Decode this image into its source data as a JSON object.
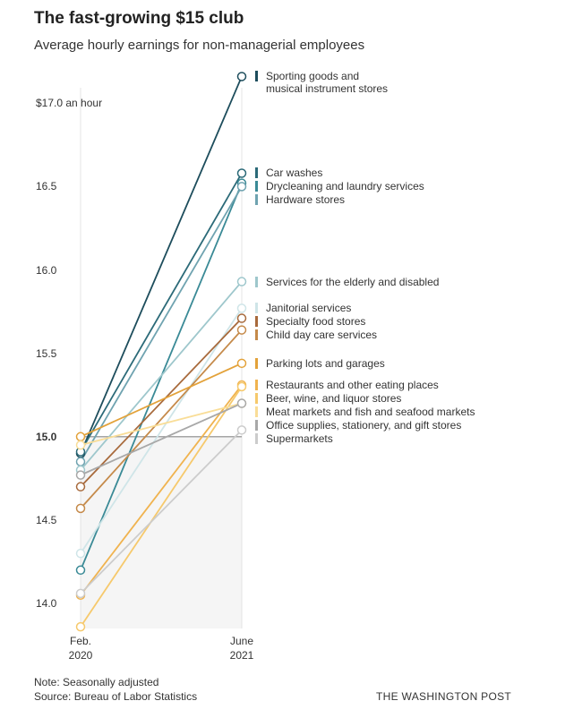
{
  "chart_data": {
    "type": "slope",
    "title": "The fast-growing $15 club",
    "subtitle": "Average hourly earnings for non-managerial employees",
    "categories": [
      "Feb.\n2020",
      "June\n2021"
    ],
    "ylim": [
      13.85,
      17.2
    ],
    "yticks": [
      {
        "value": 14,
        "label": "14.0"
      },
      14.5,
      {
        "value": 15,
        "label": "15.0",
        "bold": true
      },
      15.5,
      {
        "value": 16,
        "label": "16.0"
      },
      16.5,
      {
        "value": 17,
        "label": "$17.0 an hour"
      }
    ],
    "series": [
      {
        "name": "Sporting goods and\nmusical instrument stores",
        "color": "#1d4d5c",
        "values": [
          14.9,
          17.16
        ]
      },
      {
        "name": "Car washes",
        "color": "#2b6a78",
        "values": [
          14.91,
          16.58
        ]
      },
      {
        "name": "Drycleaning and laundry services",
        "color": "#3a8a96",
        "values": [
          14.2,
          16.52
        ]
      },
      {
        "name": "Hardware stores",
        "color": "#6fa3b0",
        "values": [
          14.85,
          16.5
        ]
      },
      {
        "name": "Services for the elderly and disabled",
        "color": "#9ec7cc",
        "values": [
          14.8,
          15.93
        ]
      },
      {
        "name": "Janitorial services",
        "color": "#cfe5e8",
        "values": [
          14.3,
          15.77
        ]
      },
      {
        "name": "Specialty food stores",
        "color": "#a86a3c",
        "values": [
          14.7,
          15.71
        ]
      },
      {
        "name": "Child day care services",
        "color": "#c58a4a",
        "values": [
          14.57,
          15.64
        ]
      },
      {
        "name": "Parking lots and garages",
        "color": "#e3a23a",
        "values": [
          15.0,
          15.44
        ]
      },
      {
        "name": "Restaurants and other eating places",
        "color": "#f0b34f",
        "values": [
          14.05,
          15.31
        ]
      },
      {
        "name": "Beer, wine, and liquor stores",
        "color": "#f6c96c",
        "values": [
          13.86,
          15.3
        ]
      },
      {
        "name": "Meat markets and fish and seafood markets",
        "color": "#f9dd97",
        "values": [
          14.95,
          15.2
        ]
      },
      {
        "name": "Office supplies, stationery, and gift stores",
        "color": "#a8a8a8",
        "values": [
          14.77,
          15.2
        ]
      },
      {
        "name": "Supermarkets",
        "color": "#cccccc",
        "values": [
          14.06,
          15.04
        ]
      }
    ],
    "note": "Note: Seasonally adjusted",
    "source": "Source: Bureau of Labor Statistics",
    "credit": "THE WASHINGTON POST"
  }
}
